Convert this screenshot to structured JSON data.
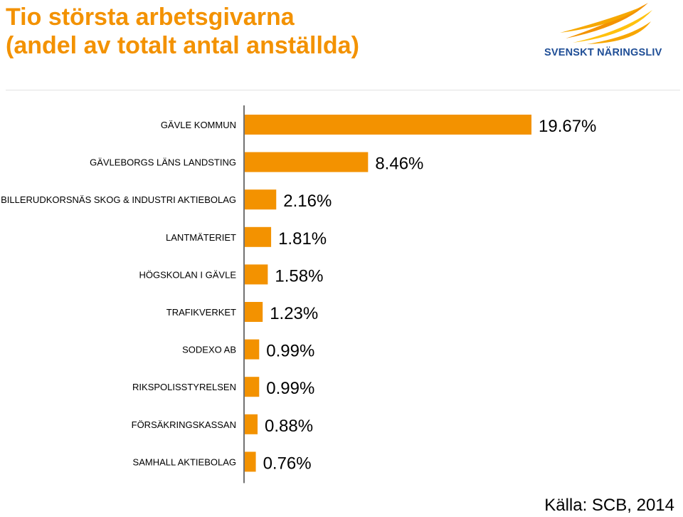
{
  "colors": {
    "title": "#f39200",
    "bar": "#f39200",
    "logo_text": "#1f4e96",
    "axis": "#444444"
  },
  "header": {
    "title": "Tio största arbetsgivarna\n(andel av totalt antal anställda)",
    "logo_text": "SVENSKT NÄRINGSLIV"
  },
  "footer": {
    "source": "Källa: SCB, 2014"
  },
  "chart_data": {
    "type": "bar",
    "orientation": "horizontal",
    "title": "Tio största arbetsgivarna (andel av totalt antal anställda)",
    "categories": [
      "GÄVLE KOMMUN",
      "GÄVLEBORGS LÄNS LANDSTING",
      "BILLERUDKORSNÄS SKOG & INDUSTRI AKTIEBOLAG",
      "LANTMÄTERIET",
      "HÖGSKOLAN I GÄVLE",
      "TRAFIKVERKET",
      "SODEXO AB",
      "RIKSPOLISSTYRELSEN",
      "FÖRSÄKRINGSKASSAN",
      "SAMHALL AKTIEBOLAG"
    ],
    "values": [
      19.67,
      8.46,
      2.16,
      1.81,
      1.58,
      1.23,
      0.99,
      0.99,
      0.88,
      0.76
    ],
    "value_labels": [
      "19.67%",
      "8.46%",
      "2.16%",
      "1.81%",
      "1.58%",
      "1.23%",
      "0.99%",
      "0.99%",
      "0.88%",
      "0.76%"
    ],
    "unit": "%",
    "xlim": [
      0,
      19.67
    ],
    "grid": false,
    "legend": "none"
  }
}
